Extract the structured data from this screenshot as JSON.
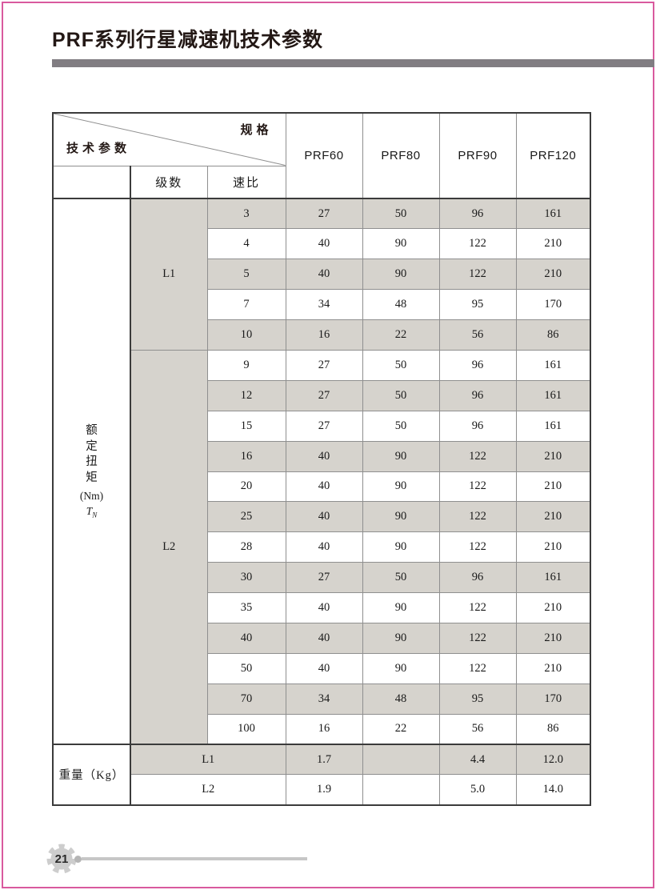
{
  "page": {
    "title": "PRF系列行星减速机技术参数",
    "page_number": "21"
  },
  "colors": {
    "accent_pink": "#d95a9e",
    "title_bar_gray": "#817d82",
    "row_shade": "#d6d3cd"
  },
  "table": {
    "corner": {
      "top_right": "规格",
      "bottom_left": "技术参数"
    },
    "col_headers": [
      "PRF60",
      "PRF80",
      "PRF90",
      "PRF120"
    ],
    "sub_headers": {
      "stage": "级数",
      "ratio": "速比"
    },
    "row_label": {
      "text": "额定扭矩",
      "unit": "(Nm)",
      "symbol": "T",
      "symbol_sub": "N"
    },
    "groups": [
      {
        "stage": "L1",
        "rows": [
          {
            "ratio": "3",
            "values": [
              "27",
              "50",
              "96",
              "161"
            ]
          },
          {
            "ratio": "4",
            "values": [
              "40",
              "90",
              "122",
              "210"
            ]
          },
          {
            "ratio": "5",
            "values": [
              "40",
              "90",
              "122",
              "210"
            ]
          },
          {
            "ratio": "7",
            "values": [
              "34",
              "48",
              "95",
              "170"
            ]
          },
          {
            "ratio": "10",
            "values": [
              "16",
              "22",
              "56",
              "86"
            ]
          }
        ]
      },
      {
        "stage": "L2",
        "rows": [
          {
            "ratio": "9",
            "values": [
              "27",
              "50",
              "96",
              "161"
            ]
          },
          {
            "ratio": "12",
            "values": [
              "27",
              "50",
              "96",
              "161"
            ]
          },
          {
            "ratio": "15",
            "values": [
              "27",
              "50",
              "96",
              "161"
            ]
          },
          {
            "ratio": "16",
            "values": [
              "40",
              "90",
              "122",
              "210"
            ]
          },
          {
            "ratio": "20",
            "values": [
              "40",
              "90",
              "122",
              "210"
            ]
          },
          {
            "ratio": "25",
            "values": [
              "40",
              "90",
              "122",
              "210"
            ]
          },
          {
            "ratio": "28",
            "values": [
              "40",
              "90",
              "122",
              "210"
            ]
          },
          {
            "ratio": "30",
            "values": [
              "27",
              "50",
              "96",
              "161"
            ]
          },
          {
            "ratio": "35",
            "values": [
              "40",
              "90",
              "122",
              "210"
            ]
          },
          {
            "ratio": "40",
            "values": [
              "40",
              "90",
              "122",
              "210"
            ]
          },
          {
            "ratio": "50",
            "values": [
              "40",
              "90",
              "122",
              "210"
            ]
          },
          {
            "ratio": "70",
            "values": [
              "34",
              "48",
              "95",
              "170"
            ]
          },
          {
            "ratio": "100",
            "values": [
              "16",
              "22",
              "56",
              "86"
            ]
          }
        ]
      }
    ],
    "weight": {
      "label": "重量（Kg）",
      "rows": [
        {
          "stage": "L1",
          "values": [
            "1.7",
            "",
            "4.4",
            "12.0"
          ]
        },
        {
          "stage": "L2",
          "values": [
            "1.9",
            "",
            "5.0",
            "14.0"
          ]
        }
      ]
    }
  }
}
